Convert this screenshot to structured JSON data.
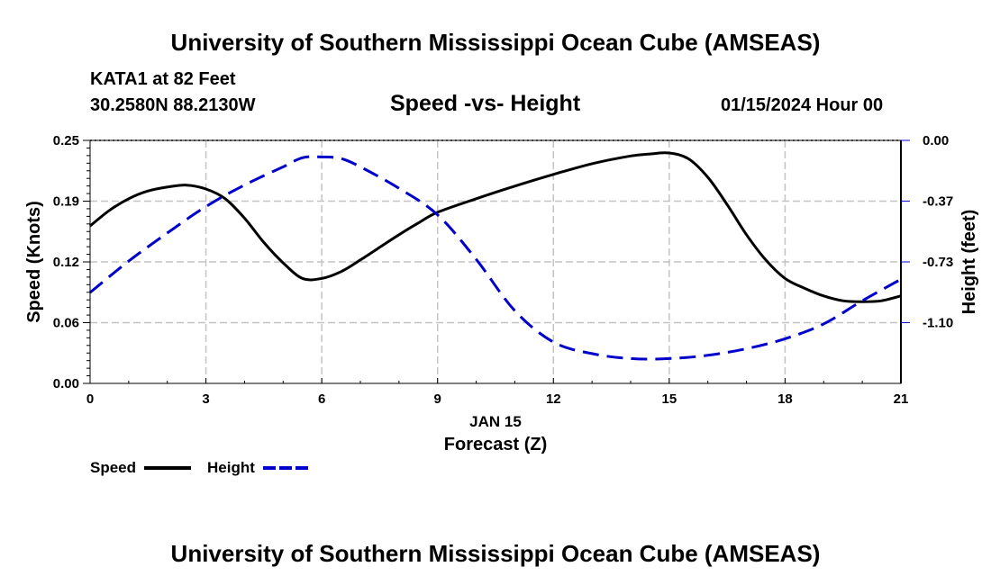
{
  "header": {
    "title": "University of Southern Mississippi Ocean Cube (AMSEAS)",
    "station": "KATA1 at 82 Feet",
    "coords": "30.2580N  88.2130W",
    "datetime": "01/15/2024 Hour 00"
  },
  "footer": {
    "title": "University of Southern Mississippi Ocean Cube (AMSEAS)"
  },
  "chart_data": {
    "type": "line",
    "title": "Speed -vs- Height",
    "xlabel": "Forecast (Z)",
    "xdate": "JAN 15",
    "ylabel": "Speed (Knots)",
    "y2label": "Height (feet)",
    "xlim": [
      0,
      21
    ],
    "ylim": [
      0,
      0.25
    ],
    "y2lim": [
      -1.47,
      0
    ],
    "x_ticks": [
      0,
      3,
      6,
      9,
      12,
      15,
      18,
      21
    ],
    "y_ticks": [
      "0.00",
      "0.06",
      "0.12",
      "0.19",
      "0.25"
    ],
    "y_tick_values": [
      0,
      0.0625,
      0.125,
      0.1875,
      0.25
    ],
    "y2_ticks": [
      "0.00",
      "-0.37",
      "-0.73",
      "-1.10"
    ],
    "y2_tick_values": [
      0,
      -0.367,
      -0.735,
      -1.102
    ],
    "grid": true,
    "series": [
      {
        "name": "Speed",
        "axis": "left",
        "color": "#000000",
        "dash": "solid",
        "x": [
          0,
          0.5,
          1,
          1.5,
          2,
          2.5,
          3,
          3.5,
          4,
          4.5,
          5,
          5.5,
          6,
          6.5,
          7,
          7.5,
          8,
          8.5,
          9,
          10,
          11,
          12,
          13,
          14,
          14.5,
          15,
          15.5,
          16,
          16.5,
          17,
          17.5,
          18,
          18.5,
          19,
          19.5,
          20,
          20.5,
          21
        ],
        "values": [
          0.162,
          0.178,
          0.19,
          0.198,
          0.202,
          0.204,
          0.2,
          0.19,
          0.17,
          0.145,
          0.124,
          0.108,
          0.108,
          0.115,
          0.127,
          0.14,
          0.153,
          0.165,
          0.176,
          0.19,
          0.203,
          0.215,
          0.226,
          0.234,
          0.236,
          0.237,
          0.231,
          0.212,
          0.184,
          0.153,
          0.127,
          0.108,
          0.098,
          0.09,
          0.085,
          0.084,
          0.085,
          0.09
        ]
      },
      {
        "name": "Height",
        "axis": "right",
        "color": "#0000cc",
        "dash": "dashed",
        "x": [
          0,
          1,
          2,
          3,
          4,
          5,
          5.5,
          6,
          6.5,
          7,
          8,
          9,
          10,
          11,
          12,
          13,
          14,
          15,
          16,
          17,
          18,
          19,
          20,
          21
        ],
        "values": [
          -0.92,
          -0.73,
          -0.56,
          -0.4,
          -0.27,
          -0.16,
          -0.105,
          -0.1,
          -0.11,
          -0.16,
          -0.29,
          -0.45,
          -0.72,
          -1.03,
          -1.22,
          -1.29,
          -1.32,
          -1.32,
          -1.3,
          -1.26,
          -1.2,
          -1.11,
          -0.97,
          -0.84
        ]
      }
    ],
    "legend": [
      {
        "name": "Speed",
        "color": "#000000",
        "dash": "solid"
      },
      {
        "name": "Height",
        "color": "#0000cc",
        "dash": "dashed"
      }
    ],
    "legend_position": "bottom-left"
  }
}
